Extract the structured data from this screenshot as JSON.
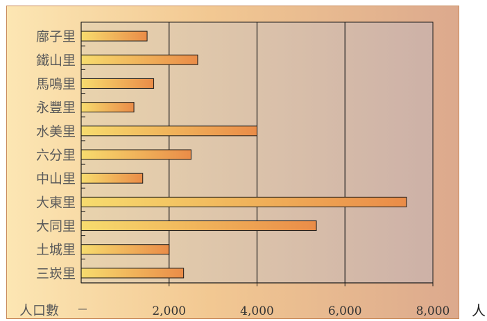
{
  "chart_data": {
    "type": "bar",
    "orientation": "horizontal",
    "categories": [
      "廍子里",
      "鐵山里",
      "馬鳴里",
      "永豐里",
      "水美里",
      "六分里",
      "中山里",
      "大東里",
      "大同里",
      "土城里",
      "三崁里"
    ],
    "values": [
      1500,
      2650,
      1650,
      1200,
      4000,
      2500,
      1400,
      7400,
      5350,
      2000,
      2330
    ],
    "xlabel": "人口數",
    "unit_label": "人",
    "xlim": [
      0,
      8000
    ],
    "xticks": [
      "2,000",
      "4,000",
      "6,000",
      "8,000"
    ],
    "grid": true
  },
  "colors": {
    "bar_light": "#f7dc6e",
    "bar_dark": "#ea8c48",
    "bar_stroke": "#1a1a1a",
    "plot_bg_left": "#e9d3ad",
    "plot_bg_right": "#cdb1a7"
  }
}
